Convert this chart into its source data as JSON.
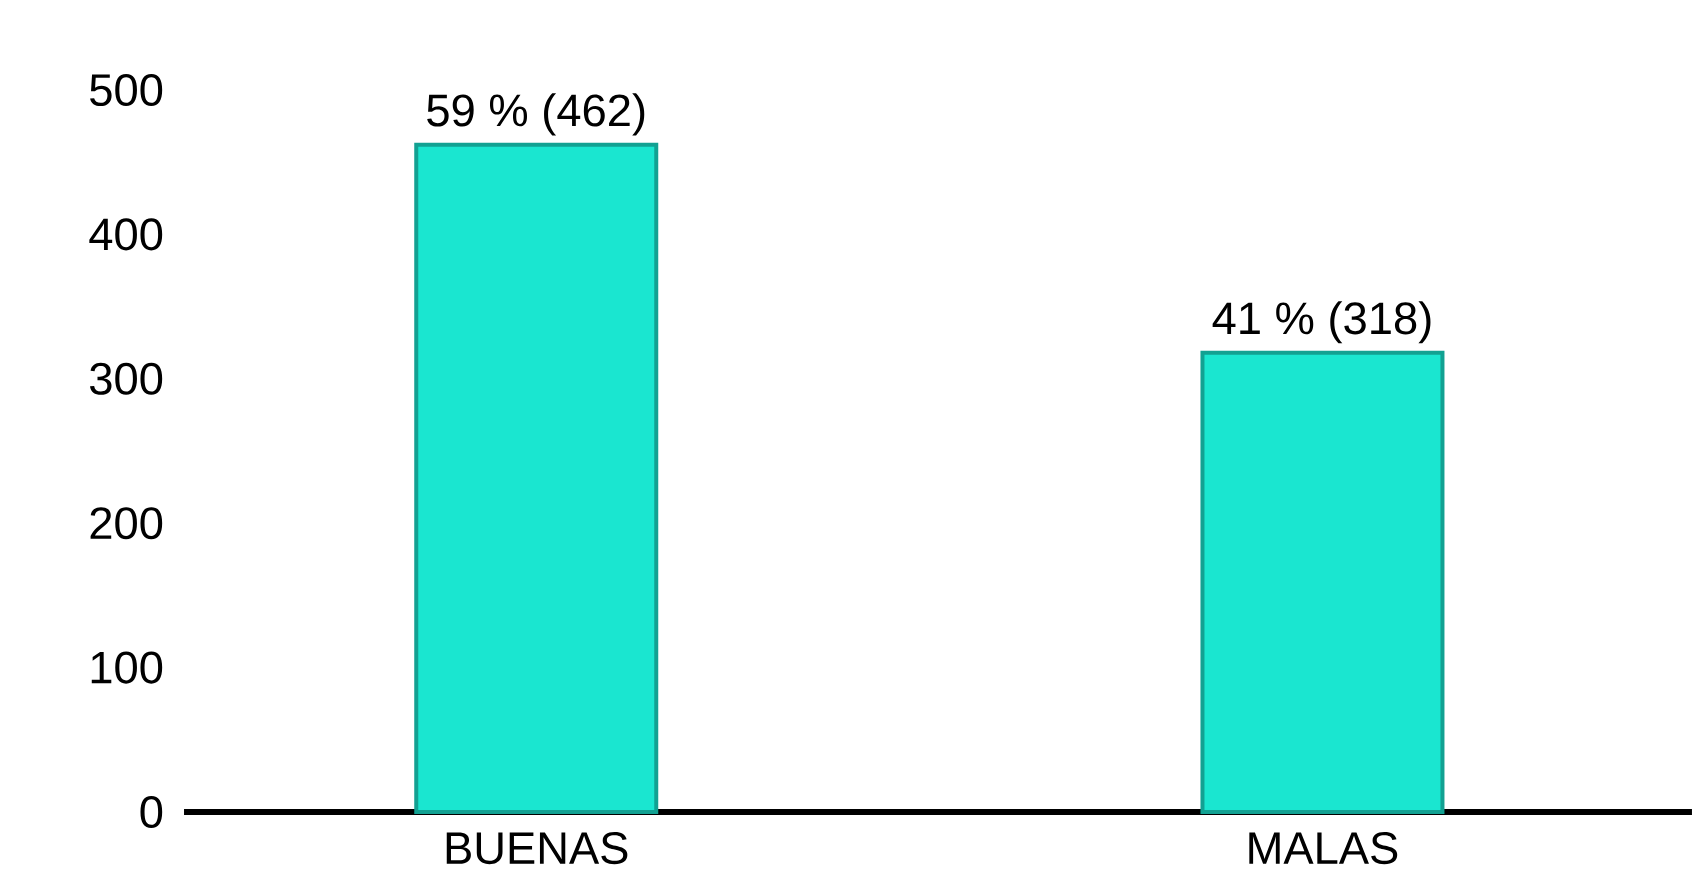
{
  "chart_data": {
    "type": "bar",
    "categories": [
      "BUENAS",
      "MALAS"
    ],
    "values": [
      462,
      318
    ],
    "value_labels": [
      "59 % (462)",
      "41 % (318)"
    ],
    "color": "#1ae6d0",
    "ylim": [
      0,
      500
    ],
    "yticks": [
      0,
      100,
      200,
      300,
      400,
      500
    ],
    "grid": false
  }
}
